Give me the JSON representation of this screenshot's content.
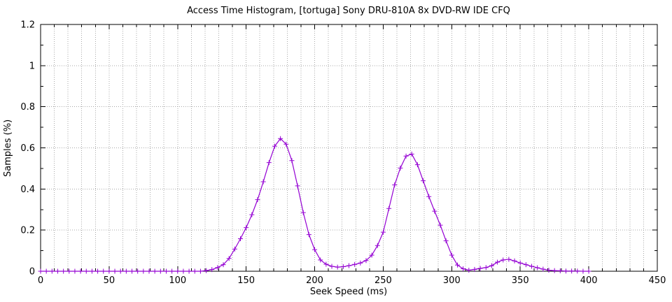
{
  "page": {
    "background": "#ffffff",
    "border_color": "#000000",
    "text_color": "#000000"
  },
  "chart_data": {
    "type": "line",
    "title": "Access Time Histogram, [tortuga] Sony DRU-810A 8x DVD-RW IDE CFQ",
    "xlabel": "Seek Speed (ms)",
    "ylabel": "Samples (%)",
    "xlim": [
      0,
      450
    ],
    "ylim": [
      0,
      1.2
    ],
    "xticks": {
      "major": [
        0,
        50,
        100,
        150,
        200,
        250,
        300,
        350,
        400,
        450
      ],
      "minor_step": 10
    },
    "yticks": {
      "major_values": [
        0,
        0.2,
        0.4,
        0.6,
        0.8,
        1,
        1.2
      ],
      "major_labels": [
        "0",
        "0.2",
        "0.4",
        "0.6",
        "0.8",
        "1",
        "1.2"
      ],
      "minor_step": 0.1
    },
    "grid": {
      "x_step": 10,
      "y_step": 0.2,
      "style": "dotted",
      "color": "#a8a8a8"
    },
    "legend": "none",
    "series": [
      {
        "name": "access-time-histogram",
        "color": "#9400d3",
        "marker": "plus",
        "x": [
          0,
          4.17,
          8.33,
          12.5,
          16.67,
          20.83,
          25,
          29.17,
          33.33,
          37.5,
          41.67,
          45.83,
          50,
          54.17,
          58.33,
          62.5,
          66.67,
          70.83,
          75,
          79.17,
          83.33,
          87.5,
          91.67,
          95.83,
          100,
          104.17,
          108.33,
          112.5,
          116.67,
          120.83,
          125,
          129.17,
          133.33,
          137.5,
          141.67,
          145.83,
          150,
          154.17,
          158.33,
          162.5,
          166.67,
          170.83,
          175,
          179.17,
          183.33,
          187.5,
          191.67,
          195.83,
          200,
          204.17,
          208.33,
          212.5,
          216.67,
          220.83,
          225,
          229.17,
          233.33,
          237.5,
          241.67,
          245.83,
          250,
          254.17,
          258.33,
          262.5,
          266.67,
          270.83,
          275,
          279.17,
          283.33,
          287.5,
          291.67,
          295.83,
          300,
          304.17,
          308.33,
          312.5,
          316.67,
          320.83,
          325,
          329.17,
          333.33,
          337.5,
          341.67,
          345.83,
          350,
          354.17,
          358.33,
          362.5,
          366.67,
          370.83,
          375,
          379.17,
          383.33,
          387.5,
          391.67,
          395.83,
          400
        ],
        "y": [
          0,
          0,
          0,
          0,
          0,
          0,
          0,
          0,
          0,
          0,
          0,
          0,
          0,
          0,
          0,
          0,
          0,
          0,
          0,
          0,
          0,
          0,
          0,
          0,
          0,
          0,
          0,
          0,
          0,
          0.003,
          0.008,
          0.018,
          0.032,
          0.062,
          0.108,
          0.158,
          0.212,
          0.275,
          0.348,
          0.435,
          0.528,
          0.608,
          0.645,
          0.618,
          0.538,
          0.415,
          0.285,
          0.178,
          0.105,
          0.055,
          0.034,
          0.024,
          0.02,
          0.022,
          0.027,
          0.033,
          0.04,
          0.052,
          0.078,
          0.125,
          0.19,
          0.305,
          0.42,
          0.502,
          0.56,
          0.57,
          0.518,
          0.44,
          0.363,
          0.292,
          0.224,
          0.148,
          0.078,
          0.03,
          0.012,
          0.005,
          0.009,
          0.014,
          0.018,
          0.027,
          0.044,
          0.055,
          0.058,
          0.05,
          0.04,
          0.032,
          0.024,
          0.017,
          0.01,
          0.005,
          0.003,
          0.002,
          0.001,
          0.001,
          0.001,
          0,
          0
        ]
      }
    ]
  }
}
